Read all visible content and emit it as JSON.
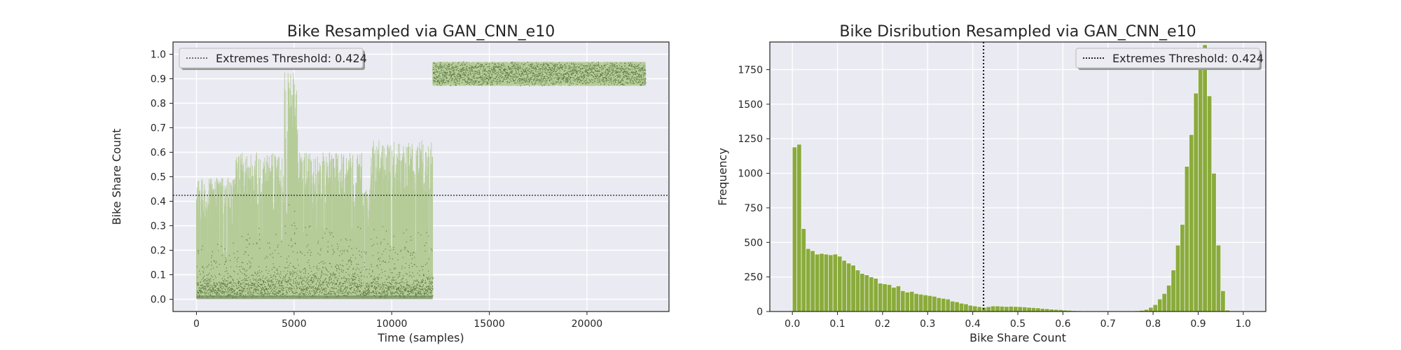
{
  "colors": {
    "axes_bg": "#eaeaf2",
    "grid": "#ffffff",
    "series_light": "#b5cc98",
    "series_dark": "#5f7a45",
    "hist_bar": "#8aab3c",
    "hist_edge": "#ffffff",
    "threshold": "#333333"
  },
  "chart_data": [
    {
      "type": "scatter",
      "title": "Bike Resampled via GAN_CNN_e10",
      "xlabel": "Time (samples)",
      "ylabel": "Bike Share Count",
      "xlim": [
        -1200,
        24200
      ],
      "ylim": [
        -0.05,
        1.05
      ],
      "xticks": [
        0,
        5000,
        10000,
        15000,
        20000
      ],
      "xtick_labels": [
        "0",
        "5000",
        "10000",
        "15000",
        "20000"
      ],
      "yticks": [
        0.0,
        0.1,
        0.2,
        0.3,
        0.4,
        0.5,
        0.6,
        0.7,
        0.8,
        0.9,
        1.0
      ],
      "ytick_labels": [
        "0.0",
        "0.1",
        "0.2",
        "0.3",
        "0.4",
        "0.5",
        "0.6",
        "0.7",
        "0.8",
        "0.9",
        "1.0"
      ],
      "grid": true,
      "threshold": {
        "value": 0.424,
        "label": "Extremes Threshold: 0.424",
        "style": "dotted"
      },
      "legend": {
        "position": "top-left",
        "entries": [
          "Extremes Threshold: 0.424"
        ]
      },
      "segments": [
        {
          "x_range": [
            0,
            2000
          ],
          "base_range": [
            0.0,
            0.16
          ],
          "peak_max": 0.5
        },
        {
          "x_range": [
            2000,
            4500
          ],
          "base_range": [
            0.0,
            0.22
          ],
          "peak_max": 0.6
        },
        {
          "x_range": [
            4500,
            5200
          ],
          "base_range": [
            0.0,
            0.3
          ],
          "peak_max": 0.93
        },
        {
          "x_range": [
            5200,
            8500
          ],
          "base_range": [
            0.0,
            0.25
          ],
          "peak_max": 0.6
        },
        {
          "x_range": [
            8500,
            8900
          ],
          "base_range": [
            0.0,
            0.12
          ],
          "peak_max": 0.45
        },
        {
          "x_range": [
            8900,
            12100
          ],
          "base_range": [
            0.0,
            0.18
          ],
          "peak_max": 0.65
        },
        {
          "x_range": [
            12100,
            23000
          ],
          "base_range": [
            0.87,
            0.97
          ],
          "peak_max": 0.97
        }
      ],
      "series_density": 1500
    },
    {
      "type": "bar",
      "title": "Bike Disribution Resampled via GAN_CNN_e10",
      "xlabel": "Bike Share Count",
      "ylabel": "Frequency",
      "xlim": [
        -0.05,
        1.05
      ],
      "ylim": [
        0,
        1950
      ],
      "xticks": [
        0.0,
        0.1,
        0.2,
        0.3,
        0.4,
        0.5,
        0.6,
        0.7,
        0.8,
        0.9,
        1.0
      ],
      "xtick_labels": [
        "0.0",
        "0.1",
        "0.2",
        "0.3",
        "0.4",
        "0.5",
        "0.6",
        "0.7",
        "0.8",
        "0.9",
        "1.0"
      ],
      "yticks": [
        0,
        250,
        500,
        750,
        1000,
        1250,
        1500,
        1750
      ],
      "ytick_labels": [
        "0",
        "250",
        "500",
        "750",
        "1000",
        "1250",
        "1500",
        "1750"
      ],
      "grid": true,
      "threshold": {
        "value": 0.424,
        "label": "Extremes Threshold: 0.424",
        "style": "dotted"
      },
      "legend": {
        "position": "top-right",
        "entries": [
          "Extremes Threshold: 0.424"
        ]
      },
      "bin_start": 0.0,
      "bin_width": 0.01,
      "values": [
        1190,
        1210,
        600,
        455,
        440,
        415,
        420,
        415,
        410,
        415,
        400,
        370,
        350,
        335,
        300,
        275,
        265,
        250,
        240,
        205,
        200,
        195,
        175,
        185,
        150,
        140,
        145,
        130,
        125,
        120,
        115,
        110,
        100,
        95,
        90,
        75,
        70,
        60,
        55,
        45,
        40,
        35,
        30,
        35,
        40,
        40,
        38,
        36,
        38,
        36,
        35,
        33,
        30,
        28,
        26,
        22,
        20,
        17,
        15,
        13,
        10,
        8,
        6,
        5,
        4,
        3,
        3,
        2,
        2,
        2,
        2,
        2,
        2,
        2,
        3,
        4,
        5,
        8,
        15,
        30,
        50,
        90,
        130,
        190,
        300,
        480,
        630,
        1050,
        1280,
        1580,
        1800,
        1930,
        1560,
        1000,
        480,
        150,
        10,
        0,
        0,
        0
      ]
    }
  ]
}
